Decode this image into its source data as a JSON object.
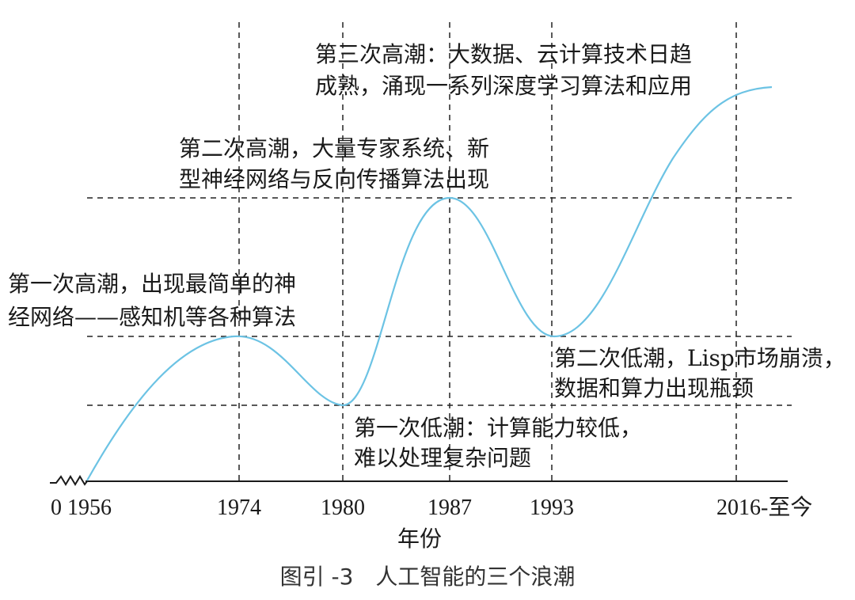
{
  "caption": "图引 -3　人工智能的三个浪潮",
  "x_axis_label": "年份",
  "ticks": [
    "0 1956",
    "1974",
    "1980",
    "1987",
    "1993",
    "2016-至今"
  ],
  "annotations": {
    "wave3": [
      "第三次高潮：大数据、云计算技术日趋",
      "成熟，涌现一系列深度学习算法和应用"
    ],
    "wave2": [
      "第二次高潮，大量专家系统、新",
      "型神经网络与反向传播算法出现"
    ],
    "wave1": [
      "第一次高潮，出现最简单的神",
      "经网络——感知机等各种算法"
    ],
    "low2": [
      "第二次低潮，Lisp市场崩溃，",
      "数据和算力出现瓶颈"
    ],
    "low1": [
      "第一次低潮：计算能力较低，",
      "难以处理复杂问题"
    ]
  },
  "colors": {
    "curve": "#6cc3e4",
    "line": "#222222"
  }
}
